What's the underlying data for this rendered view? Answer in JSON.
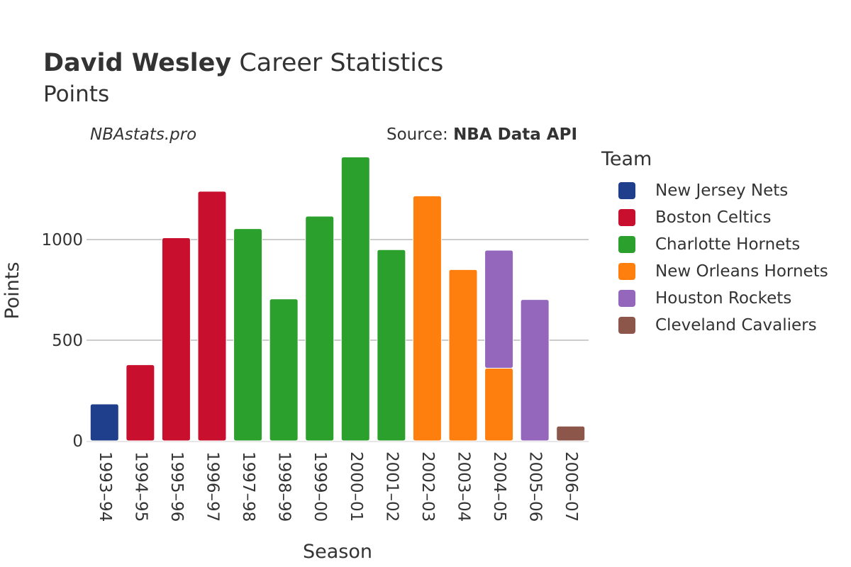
{
  "header": {
    "title_bold": "David Wesley",
    "title_rest": " Career Statistics",
    "subtitle": "Points",
    "site": "NBAstats.pro",
    "source_prefix": "Source: ",
    "source_bold": "NBA Data API"
  },
  "legend": {
    "title": "Team",
    "items": [
      {
        "label": "New Jersey Nets",
        "color": "#1f3f8c"
      },
      {
        "label": "Boston Celtics",
        "color": "#c8102e"
      },
      {
        "label": "Charlotte Hornets",
        "color": "#2ca02c"
      },
      {
        "label": "New Orleans Hornets",
        "color": "#ff7f0e"
      },
      {
        "label": "Houston Rockets",
        "color": "#9467bd"
      },
      {
        "label": "Cleveland Cavaliers",
        "color": "#8c564b"
      }
    ]
  },
  "chart_data": {
    "type": "bar",
    "stacked": true,
    "xlabel": "Season",
    "ylabel": "Points",
    "ylim": [
      0,
      1500
    ],
    "yticks": [
      0,
      500,
      1000
    ],
    "grid": true,
    "legend_position": "right",
    "categories": [
      "1993–94",
      "1994–95",
      "1995–96",
      "1996–97",
      "1997–98",
      "1998–99",
      "1999–00",
      "2000–01",
      "2001–02",
      "2002–03",
      "2003–04",
      "2004–05",
      "2005–06",
      "2006–07"
    ],
    "series": [
      {
        "name": "New Jersey Nets",
        "color": "#1f3f8c",
        "values": [
          183,
          0,
          0,
          0,
          0,
          0,
          0,
          0,
          0,
          0,
          0,
          0,
          0,
          0
        ]
      },
      {
        "name": "Boston Celtics",
        "color": "#c8102e",
        "values": [
          0,
          378,
          1009,
          1240,
          0,
          0,
          0,
          0,
          0,
          0,
          0,
          0,
          0,
          0
        ]
      },
      {
        "name": "Charlotte Hornets",
        "color": "#2ca02c",
        "values": [
          0,
          0,
          0,
          0,
          1054,
          705,
          1116,
          1410,
          950,
          0,
          0,
          0,
          0,
          0
        ]
      },
      {
        "name": "New Orleans Hornets",
        "color": "#ff7f0e",
        "values": [
          0,
          0,
          0,
          0,
          0,
          0,
          0,
          0,
          0,
          1217,
          851,
          361,
          0,
          0
        ]
      },
      {
        "name": "Houston Rockets",
        "color": "#9467bd",
        "values": [
          0,
          0,
          0,
          0,
          0,
          0,
          0,
          0,
          0,
          0,
          0,
          586,
          702,
          0
        ]
      },
      {
        "name": "Cleveland Cavaliers",
        "color": "#8c564b",
        "values": [
          0,
          0,
          0,
          0,
          0,
          0,
          0,
          0,
          0,
          0,
          0,
          0,
          0,
          73
        ]
      }
    ]
  }
}
